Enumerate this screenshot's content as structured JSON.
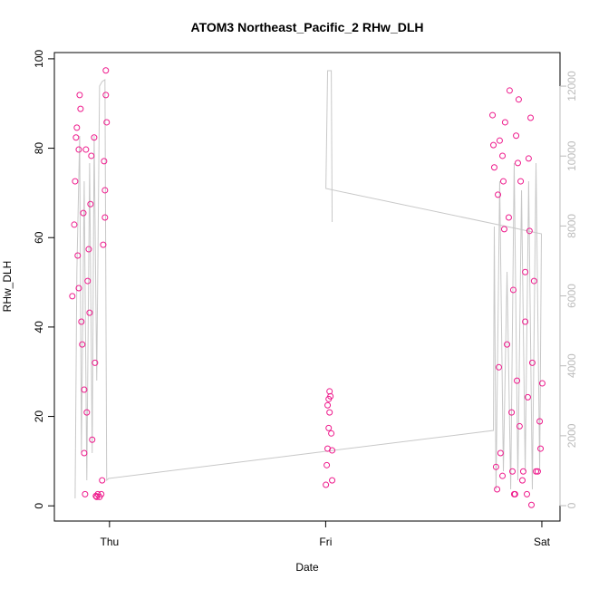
{
  "chart_data": {
    "type": "scatter",
    "title": "ATOM3 Northeast_Pacific_2 RHw_DLH",
    "xlabel": "Date",
    "ylabel": "RHw_DLH",
    "xlim": [
      -0.255,
      2.084
    ],
    "xticks": [
      {
        "value": 0,
        "label": "Thu"
      },
      {
        "value": 1,
        "label": "Fri"
      },
      {
        "value": 2,
        "label": "Sat"
      }
    ],
    "ylim": [
      -3.4,
      101.4
    ],
    "yticks": [
      0,
      20,
      40,
      60,
      80,
      100
    ],
    "y2lim": [
      -440,
      12960
    ],
    "y2ticks": [
      0,
      2000,
      4000,
      6000,
      8000,
      10000,
      12000
    ],
    "series": [
      {
        "type": "scatter",
        "color": "#ee1a8c",
        "x": [
          -0.172,
          -0.163,
          -0.159,
          -0.155,
          -0.151,
          -0.147,
          -0.142,
          -0.142,
          -0.138,
          -0.134,
          -0.13,
          -0.126,
          -0.121,
          -0.117,
          -0.117,
          -0.113,
          -0.109,
          -0.105,
          -0.101,
          -0.096,
          -0.092,
          -0.088,
          -0.084,
          -0.08,
          -0.071,
          -0.067,
          -0.063,
          -0.059,
          -0.054,
          -0.046,
          -0.038,
          -0.034,
          -0.029,
          -0.025,
          -0.021,
          -0.017,
          -0.017,
          -0.013,
          -0.021,
          1.001,
          1.005,
          1.009,
          1.014,
          1.018,
          1.014,
          1.018,
          1.022,
          1.026,
          1.03,
          1.03,
          1.009,
          1.772,
          1.776,
          1.78,
          1.788,
          1.793,
          1.797,
          1.801,
          1.805,
          1.809,
          1.818,
          1.822,
          1.826,
          1.83,
          1.839,
          1.847,
          1.851,
          1.86,
          1.864,
          1.868,
          1.876,
          1.881,
          1.885,
          1.893,
          1.897,
          1.902,
          1.91,
          1.914,
          1.923,
          1.931,
          1.935,
          1.939,
          1.943,
          1.948,
          1.952,
          1.956,
          1.964,
          1.973,
          1.981,
          1.99,
          1.994,
          2.002,
          1.923,
          1.889,
          1.872,
          1.818
        ],
        "values": [
          46.9,
          62.9,
          72.6,
          82.4,
          84.6,
          56.0,
          48.7,
          79.7,
          91.9,
          88.8,
          41.2,
          36.1,
          65.5,
          26.0,
          11.8,
          2.6,
          79.7,
          20.9,
          50.3,
          57.4,
          43.2,
          67.5,
          78.3,
          14.8,
          82.4,
          32.0,
          2.2,
          2.0,
          2.6,
          2.0,
          2.6,
          5.7,
          58.4,
          77.1,
          70.6,
          91.9,
          97.4,
          85.8,
          64.5,
          4.7,
          9.1,
          12.8,
          17.4,
          20.9,
          23.9,
          25.6,
          24.5,
          16.2,
          5.7,
          12.4,
          22.5,
          87.4,
          80.7,
          75.7,
          8.7,
          3.7,
          69.6,
          31.0,
          81.7,
          11.8,
          78.3,
          72.6,
          61.9,
          85.8,
          36.1,
          64.5,
          92.9,
          20.9,
          7.7,
          48.3,
          2.6,
          82.8,
          28.0,
          90.9,
          17.8,
          72.6,
          5.7,
          7.7,
          52.3,
          2.6,
          24.3,
          77.7,
          61.5,
          86.8,
          0.2,
          32.0,
          50.3,
          7.7,
          7.7,
          18.9,
          12.8,
          27.4,
          41.2,
          76.7,
          2.6,
          6.7
        ]
      },
      {
        "type": "line",
        "axis": "y2",
        "color": "#c8c8c8",
        "x": [
          -0.159,
          -0.151,
          -0.138,
          -0.13,
          -0.117,
          -0.105,
          -0.092,
          -0.08,
          -0.071,
          -0.059,
          -0.046,
          -0.034,
          -0.021,
          -0.013,
          -0.004,
          1.776,
          1.78,
          1.788,
          1.805,
          1.822,
          1.839,
          1.856,
          1.872,
          1.889,
          1.906,
          1.923,
          1.939,
          1.956,
          1.973,
          1.99,
          1.998,
          1.001,
          1.009,
          1.026,
          1.03
        ],
        "values": [
          207,
          6687,
          10575,
          1503,
          9279,
          726,
          9798,
          1503,
          10575,
          3577,
          12001,
          12131,
          12183,
          726,
          778,
          2151,
          7983,
          467,
          9279,
          985,
          6687,
          467,
          9798,
          726,
          9020,
          985,
          9279,
          467,
          9798,
          985,
          7776,
          9072,
          12442,
          12442,
          8113
        ]
      }
    ]
  }
}
